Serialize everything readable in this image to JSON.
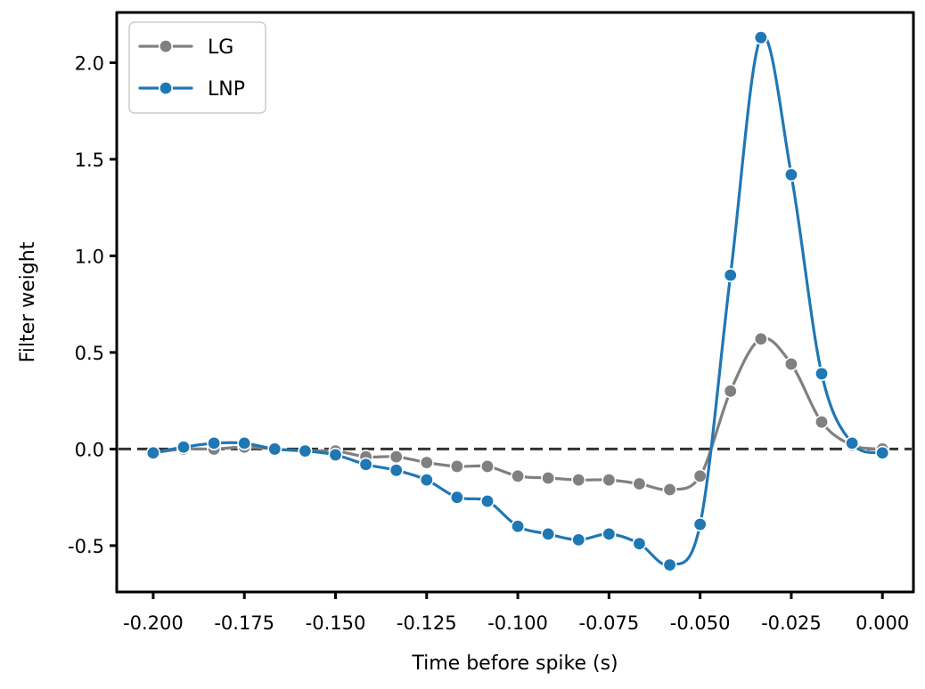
{
  "chart_data": {
    "type": "line",
    "title": "",
    "xlabel": "Time before spike (s)",
    "ylabel": "Filter weight",
    "xlim": [
      -0.21,
      0.0085
    ],
    "ylim": [
      -0.74,
      2.26
    ],
    "xticks": [
      -0.2,
      -0.175,
      -0.15,
      -0.125,
      -0.1,
      -0.075,
      -0.05,
      -0.025,
      0.0
    ],
    "xtick_labels": [
      "-0.200",
      "-0.175",
      "-0.150",
      "-0.125",
      "-0.100",
      "-0.075",
      "-0.050",
      "-0.025",
      "0.000"
    ],
    "yticks": [
      -0.5,
      0.0,
      0.5,
      1.0,
      1.5,
      2.0
    ],
    "ytick_labels": [
      "-0.5",
      "0.0",
      "0.5",
      "1.0",
      "1.5",
      "2.0"
    ],
    "grid": false,
    "legend_position": "top-left",
    "x": [
      -0.2,
      -0.19167,
      -0.18333,
      -0.175,
      -0.16667,
      -0.15833,
      -0.15,
      -0.14167,
      -0.13333,
      -0.125,
      -0.11667,
      -0.10833,
      -0.1,
      -0.09167,
      -0.08333,
      -0.075,
      -0.06667,
      -0.05833,
      -0.05,
      -0.04167,
      -0.03333,
      -0.025,
      -0.01667,
      -0.00833,
      0.0
    ],
    "series": [
      {
        "name": "LG",
        "color": "#808080",
        "values": [
          -0.02,
          0.0,
          0.0,
          0.01,
          0.0,
          -0.01,
          -0.01,
          -0.04,
          -0.04,
          -0.07,
          -0.09,
          -0.09,
          -0.14,
          -0.15,
          -0.16,
          -0.16,
          -0.18,
          -0.21,
          -0.14,
          0.3,
          0.57,
          0.44,
          0.14,
          0.02,
          0.0
        ]
      },
      {
        "name": "LNP",
        "color": "#1f77b4",
        "values": [
          -0.02,
          0.01,
          0.03,
          0.03,
          0.0,
          -0.01,
          -0.03,
          -0.08,
          -0.11,
          -0.16,
          -0.25,
          -0.27,
          -0.4,
          -0.44,
          -0.47,
          -0.44,
          -0.49,
          -0.6,
          -0.39,
          0.9,
          2.13,
          1.42,
          0.39,
          0.03,
          -0.02
        ]
      }
    ],
    "zero_line": {
      "y": 0.0,
      "style": "dashed",
      "color": "#333333"
    }
  }
}
